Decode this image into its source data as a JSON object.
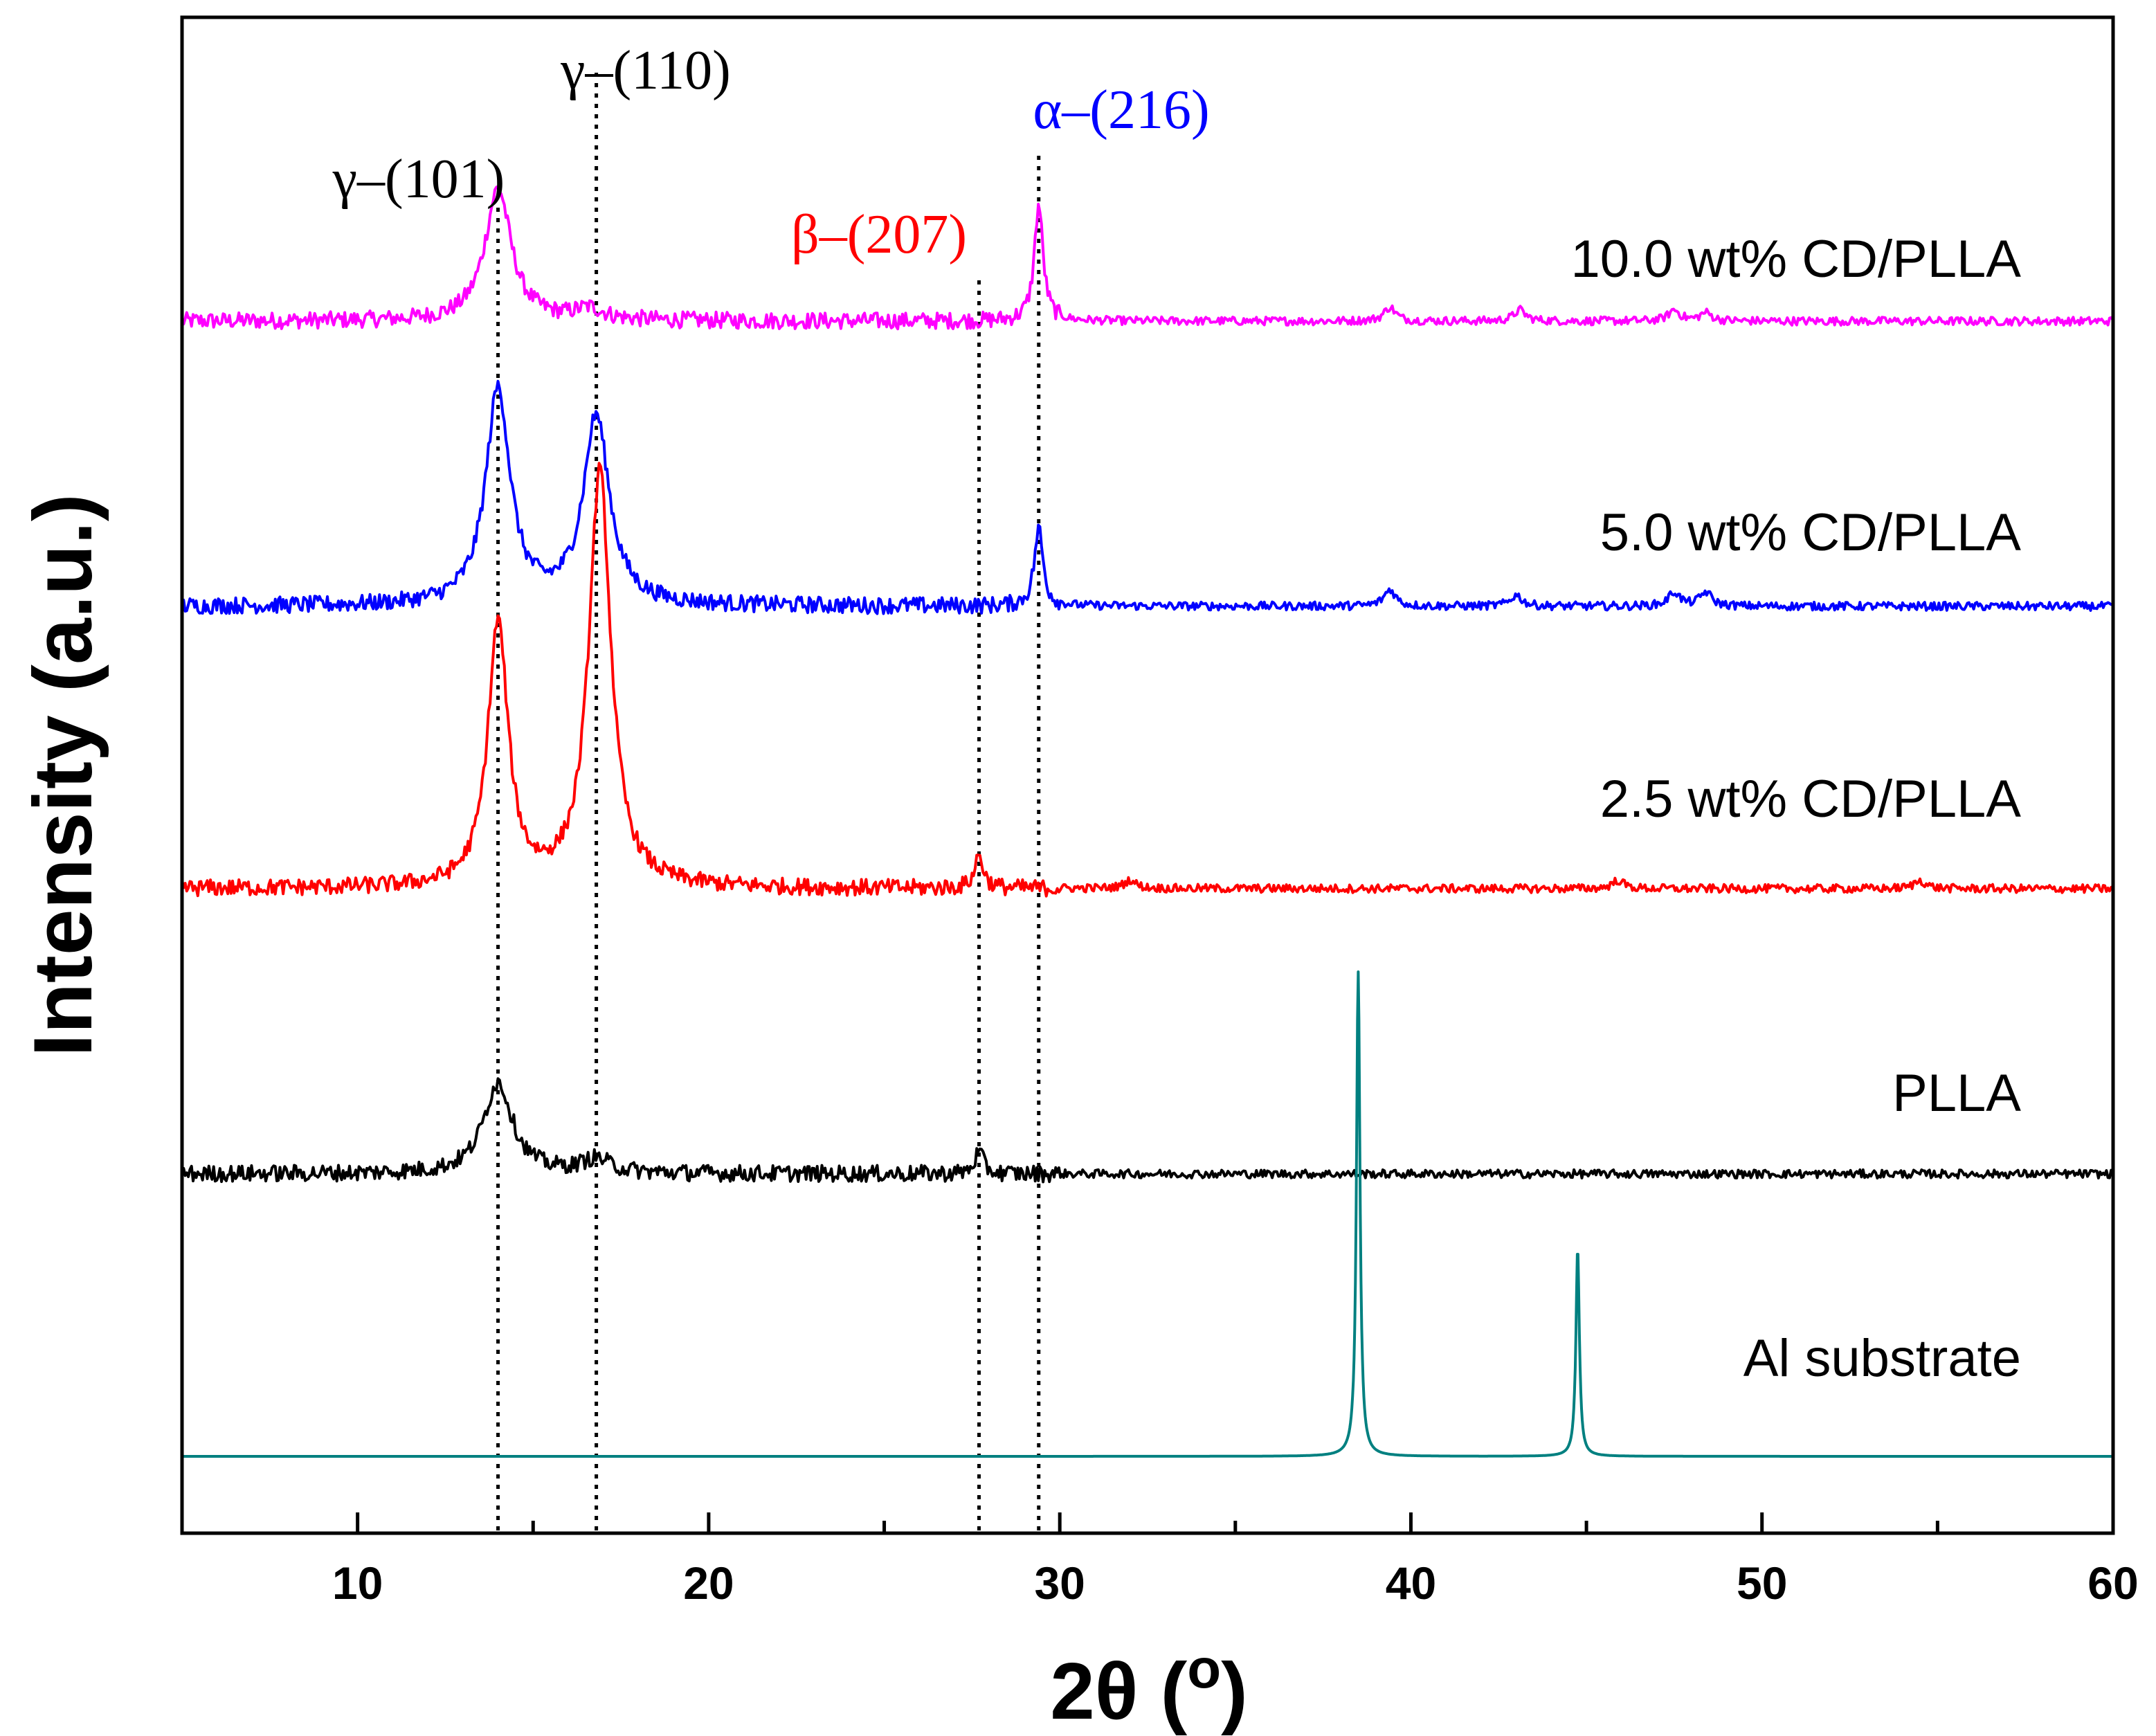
{
  "chart_data": {
    "type": "line",
    "title": "",
    "xlabel": "2θ (",
    "xlabel_unit": "o",
    "xlabel_close": ")",
    "ylabel": "Intensity (a.u.)",
    "xlim": [
      5,
      60
    ],
    "xticks": [
      10,
      20,
      30,
      40,
      50,
      60
    ],
    "yticks_shown": false,
    "grid": false,
    "series": [
      {
        "name": "10.0 wt% CD/PLLA",
        "color": "#ff00ff",
        "baseline": 4.1,
        "peaks": [
          {
            "x": 14.0,
            "h": 0.48,
            "w": 0.45
          },
          {
            "x": 16.6,
            "h": 0.04,
            "w": 0.5
          },
          {
            "x": 29.4,
            "h": 0.42,
            "w": 0.15
          },
          {
            "x": 39.4,
            "h": 0.05,
            "w": 0.2
          },
          {
            "x": 43.1,
            "h": 0.04,
            "w": 0.2
          },
          {
            "x": 47.5,
            "h": 0.04,
            "w": 0.2
          },
          {
            "x": 48.4,
            "h": 0.03,
            "w": 0.2
          }
        ]
      },
      {
        "name": "5.0 wt% CD/PLLA",
        "color": "#0000ff",
        "baseline": 3.07,
        "peaks": [
          {
            "x": 14.0,
            "h": 0.78,
            "w": 0.42
          },
          {
            "x": 16.8,
            "h": 0.68,
            "w": 0.45
          },
          {
            "x": 29.4,
            "h": 0.28,
            "w": 0.15
          },
          {
            "x": 39.4,
            "h": 0.06,
            "w": 0.2
          },
          {
            "x": 43.0,
            "h": 0.04,
            "w": 0.2
          },
          {
            "x": 47.5,
            "h": 0.05,
            "w": 0.2
          },
          {
            "x": 48.4,
            "h": 0.05,
            "w": 0.2
          }
        ]
      },
      {
        "name": "2.5 wt% CD/PLLA",
        "color": "#ff0000",
        "baseline": 2.05,
        "peaks": [
          {
            "x": 14.0,
            "h": 0.95,
            "w": 0.35
          },
          {
            "x": 16.9,
            "h": 1.5,
            "w": 0.38
          },
          {
            "x": 27.7,
            "h": 0.12,
            "w": 0.15
          },
          {
            "x": 32.0,
            "h": 0.03,
            "w": 0.2
          },
          {
            "x": 45.9,
            "h": 0.03,
            "w": 0.2
          },
          {
            "x": 54.5,
            "h": 0.03,
            "w": 0.2
          }
        ]
      },
      {
        "name": "PLLA",
        "color": "#000000",
        "baseline": 1.02,
        "peaks": [
          {
            "x": 14.0,
            "h": 0.33,
            "w": 0.5
          },
          {
            "x": 16.8,
            "h": 0.05,
            "w": 0.5
          },
          {
            "x": 27.7,
            "h": 0.08,
            "w": 0.15
          }
        ]
      },
      {
        "name": "Al substrate",
        "color": "#008080",
        "baseline": 0.0,
        "peaks": [
          {
            "x": 38.5,
            "h": 1.75,
            "w": 0.06
          },
          {
            "x": 44.75,
            "h": 0.75,
            "w": 0.06
          }
        ]
      }
    ],
    "reference_lines": [
      {
        "x": 14.0,
        "label": "γ–(101)",
        "color": "#000000"
      },
      {
        "x": 16.8,
        "label": "γ–(110)",
        "color": "#000000"
      },
      {
        "x": 27.7,
        "label": "β–(207)",
        "color": "#ff0000"
      },
      {
        "x": 29.4,
        "label": "α–(216)",
        "color": "#0000ff"
      }
    ]
  }
}
